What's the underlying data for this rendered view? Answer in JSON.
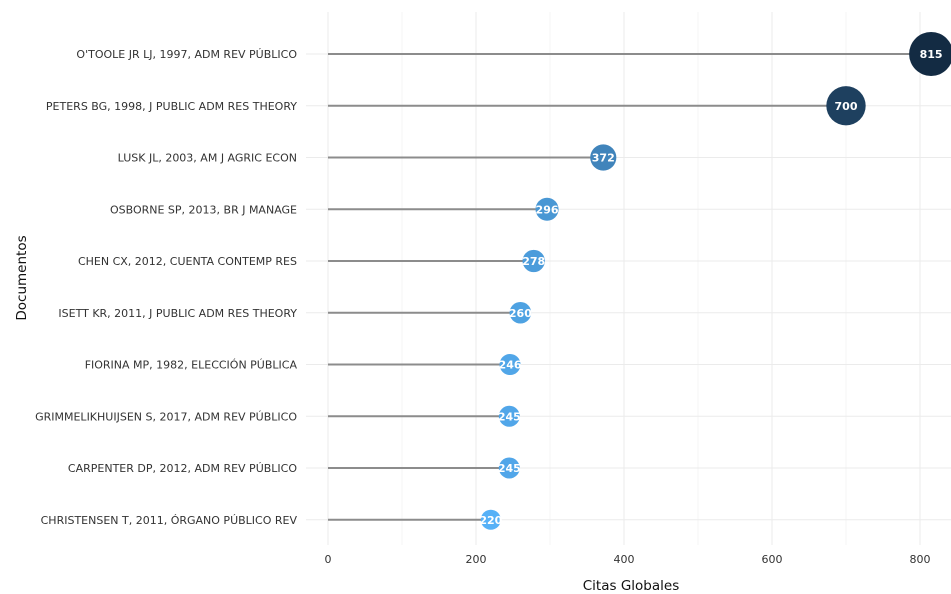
{
  "chart_data": {
    "type": "scatter",
    "style": "lollipop",
    "orientation": "horizontal",
    "xlabel": "Citas Globales",
    "ylabel": "Documentos",
    "xlim": [
      0,
      820
    ],
    "x_ticks": [
      0,
      200,
      400,
      600,
      800
    ],
    "grid": true,
    "legend": "none",
    "categories": [
      "O'TOOLE JR LJ, 1997, ADM REV PÚBLICO",
      "PETERS BG, 1998, J PUBLIC ADM RES THEORY",
      "LUSK JL, 2003, AM J AGRIC ECON",
      "OSBORNE SP, 2013, BR J MANAGE",
      "CHEN CX, 2012, CUENTA CONTEMP RES",
      "ISETT KR, 2011, J PUBLIC ADM RES THEORY",
      "FIORINA MP, 1982, ELECCIÓN PÚBLICA",
      "GRIMMELIKHUIJSEN S, 2017, ADM REV PÚBLICO",
      "CARPENTER DP, 2012, ADM REV PÚBLICO",
      "CHRISTENSEN T, 2011, ÓRGANO PÚBLICO REV"
    ],
    "values": [
      815,
      700,
      372,
      296,
      278,
      260,
      246,
      245,
      245,
      220
    ],
    "value_labels": [
      "815",
      "700",
      "372",
      "296",
      "278",
      "260",
      "246",
      "245",
      "245",
      "220"
    ],
    "colors": {
      "stem": "#8c8c8c",
      "grid": "#ebebeb",
      "low": "#56b1f7",
      "high": "#132b43"
    }
  }
}
